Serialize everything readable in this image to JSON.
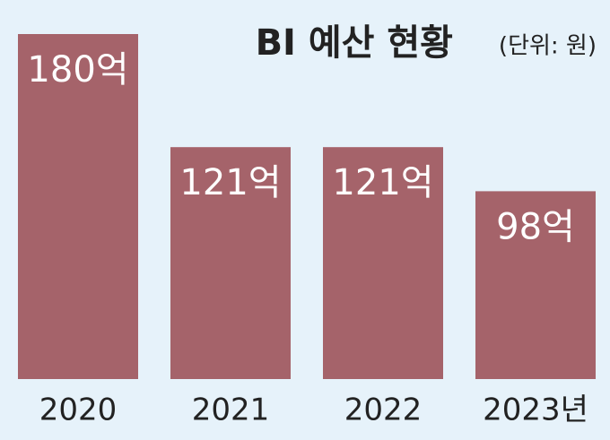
{
  "chart_data": {
    "type": "bar",
    "title": "BI 예산 현황",
    "subtitle": "(단위: 원)",
    "categories": [
      "2020",
      "2021",
      "2022",
      "2023년"
    ],
    "values": [
      180,
      121,
      121,
      98
    ],
    "value_labels": [
      "180억",
      "121억",
      "121억",
      "98억"
    ],
    "color": "#a5636a",
    "ylim": [
      0,
      180
    ]
  }
}
